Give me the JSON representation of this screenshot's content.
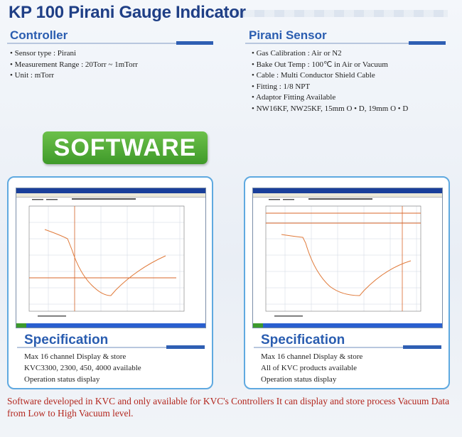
{
  "title": "KP 100 Pirani Gauge Indicator",
  "controller": {
    "heading": "Controller",
    "items": [
      "Sensor type : Pirani",
      "Measurement Range : 20Torr ~ 1mTorr",
      "Unit : mTorr"
    ]
  },
  "sensor": {
    "heading": "Pirani Sensor",
    "items": [
      "Gas Calibration : Air or N2",
      "Bake Out Temp : 100℃ in Air or Vacuum",
      "Cable : Multi Conductor Shield Cable",
      "Fitting : 1/8 NPT",
      "Adaptor Fitting Available",
      "NW16KF, NW25KF, 15mm O • D, 19mm O • D"
    ]
  },
  "software_label": "SOFTWARE",
  "panels": [
    {
      "spec_heading": "Specification",
      "spec_lines": [
        "Max 16 channel Display & store",
        "KVC3300, 2300, 450, 4000 available",
        "Operation status display"
      ]
    },
    {
      "spec_heading": "Specification",
      "spec_lines": [
        "Max 16 channel Display & store",
        "All of KVC products available",
        "Operation status display"
      ]
    }
  ],
  "footer": "Software developed in KVC and only available for KVC's Controllers It can display and store process Vacuum Data from Low to High Vacuum level.",
  "colors": {
    "title": "#1f3f86",
    "heading": "#2a5db0",
    "badge": "#4fa836",
    "footer": "#b3261e",
    "curve": "#e07a3a"
  }
}
